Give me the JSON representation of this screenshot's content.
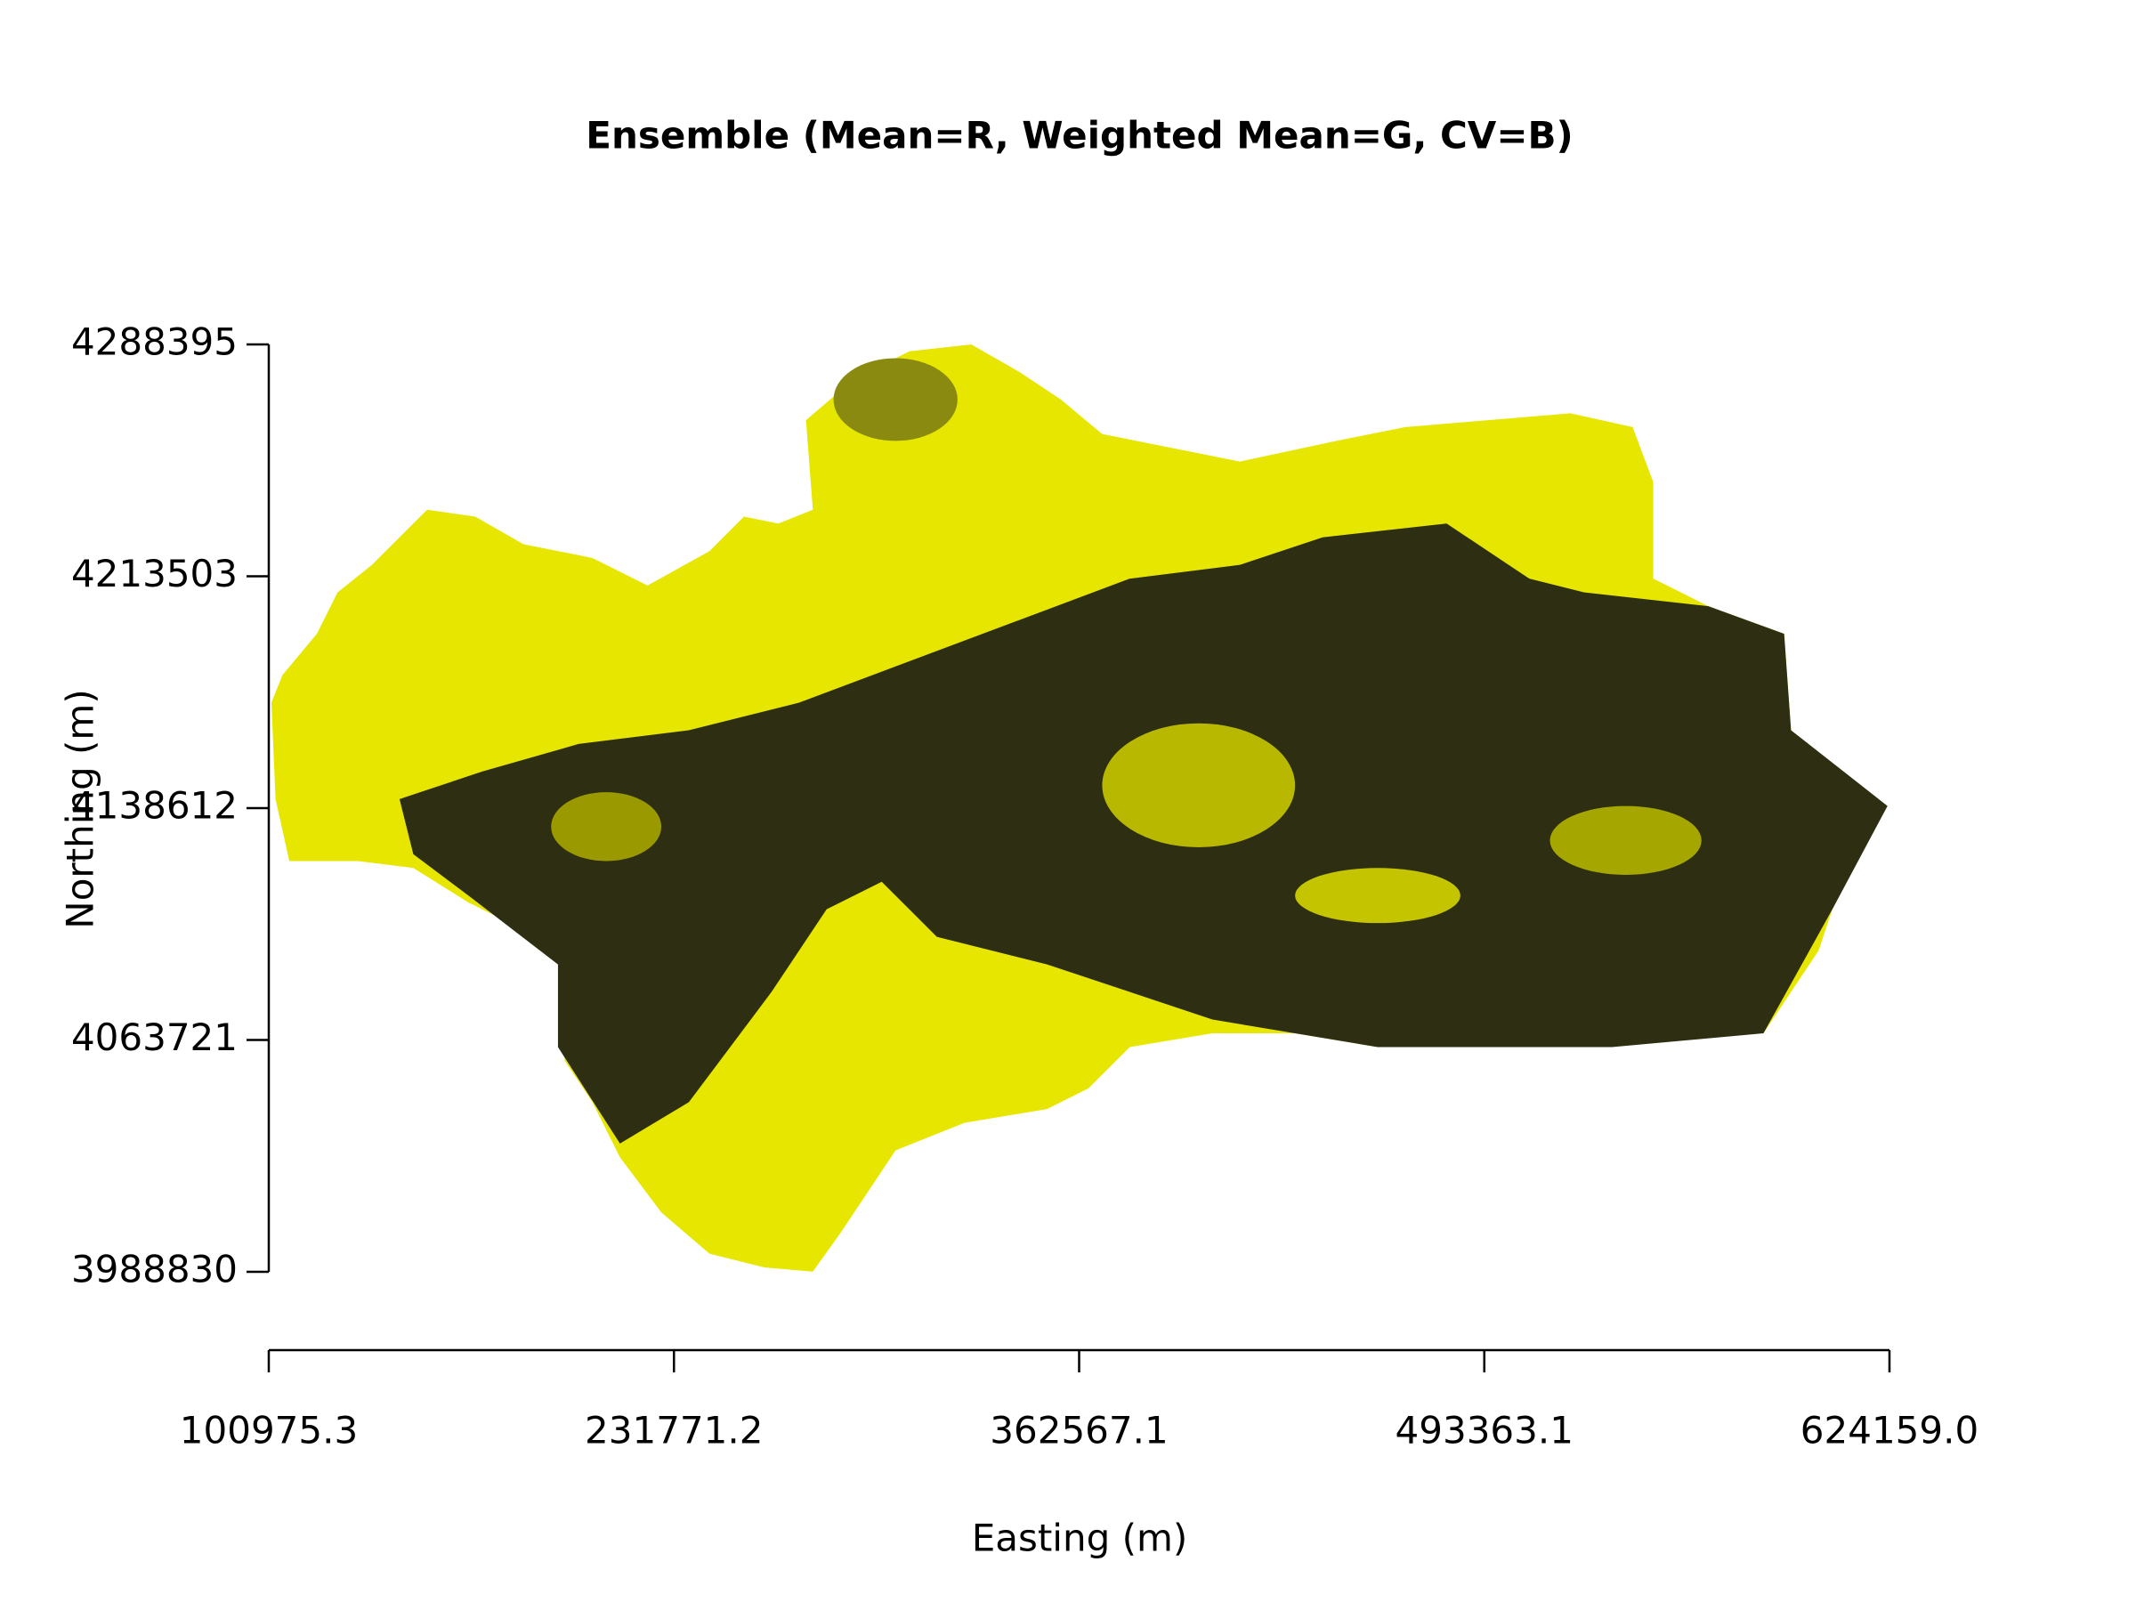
{
  "chart_data": {
    "type": "raster",
    "title": "Ensemble (Mean=R, Weighted Mean=G, CV=B)",
    "xlabel": "Easting (m)",
    "ylabel": "Northing (m)",
    "xlim": [
      100975.3,
      624159.0
    ],
    "ylim": [
      3988830,
      4288395
    ],
    "xticks": [
      100975.3,
      231771.2,
      362567.1,
      493363.1,
      {
        "value": 624159.0,
        "label": "624159.0"
      }
    ],
    "yticks": [
      3988830,
      4063721,
      4138612,
      4213503,
      4288395
    ]
  }
}
